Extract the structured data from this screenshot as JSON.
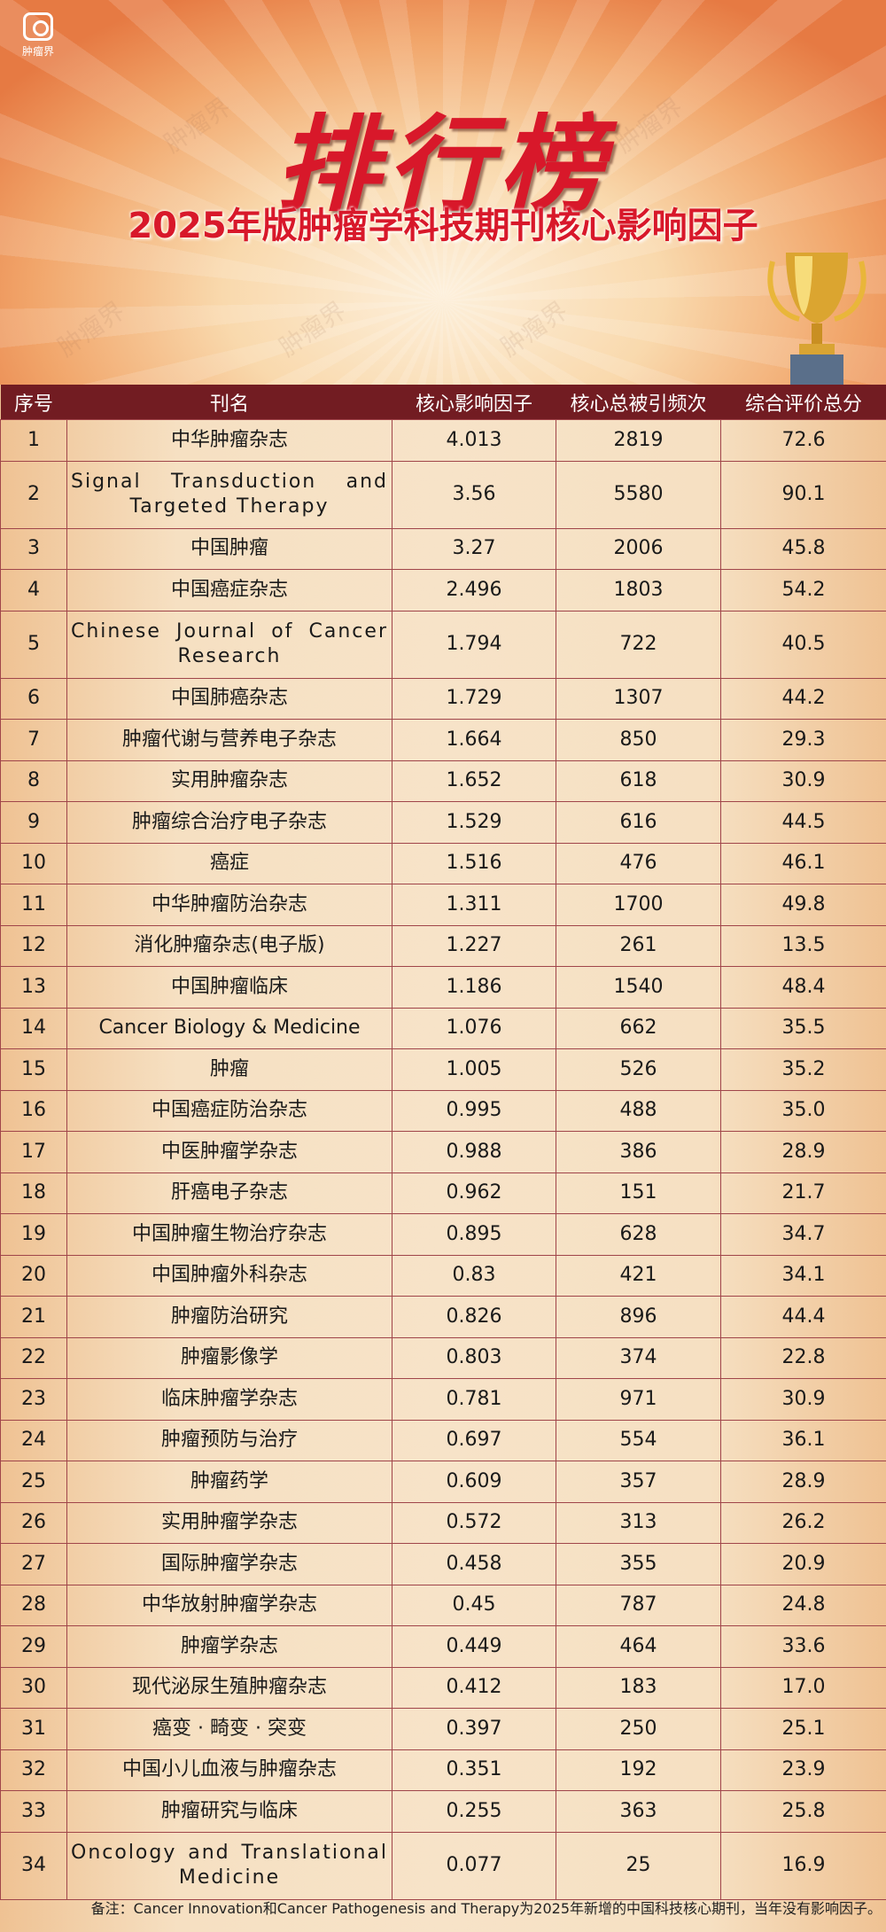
{
  "brand": {
    "logo_text": "肿瘤界",
    "watermark": "肿瘤界"
  },
  "header": {
    "title": "排行榜",
    "subtitle": "2025年版肿瘤学科技期刊核心影响因子"
  },
  "table": {
    "columns": [
      "序号",
      "刊名",
      "核心影响因子",
      "核心总被引频次",
      "综合评价总分"
    ],
    "rows": [
      [
        "1",
        "中华肿瘤杂志",
        "4.013",
        "2819",
        "72.6"
      ],
      [
        "2",
        "Signal Transduction and Targeted Therapy",
        "3.56",
        "5580",
        "90.1"
      ],
      [
        "3",
        "中国肿瘤",
        "3.27",
        "2006",
        "45.8"
      ],
      [
        "4",
        "中国癌症杂志",
        "2.496",
        "1803",
        "54.2"
      ],
      [
        "5",
        "Chinese Journal of Cancer Research",
        "1.794",
        "722",
        "40.5"
      ],
      [
        "6",
        "中国肺癌杂志",
        "1.729",
        "1307",
        "44.2"
      ],
      [
        "7",
        "肿瘤代谢与营养电子杂志",
        "1.664",
        "850",
        "29.3"
      ],
      [
        "8",
        "实用肿瘤杂志",
        "1.652",
        "618",
        "30.9"
      ],
      [
        "9",
        "肿瘤综合治疗电子杂志",
        "1.529",
        "616",
        "44.5"
      ],
      [
        "10",
        "癌症",
        "1.516",
        "476",
        "46.1"
      ],
      [
        "11",
        "中华肿瘤防治杂志",
        "1.311",
        "1700",
        "49.8"
      ],
      [
        "12",
        "消化肿瘤杂志(电子版)",
        "1.227",
        "261",
        "13.5"
      ],
      [
        "13",
        "中国肿瘤临床",
        "1.186",
        "1540",
        "48.4"
      ],
      [
        "14",
        "Cancer Biology & Medicine",
        "1.076",
        "662",
        "35.5"
      ],
      [
        "15",
        "肿瘤",
        "1.005",
        "526",
        "35.2"
      ],
      [
        "16",
        "中国癌症防治杂志",
        "0.995",
        "488",
        "35.0"
      ],
      [
        "17",
        "中医肿瘤学杂志",
        "0.988",
        "386",
        "28.9"
      ],
      [
        "18",
        "肝癌电子杂志",
        "0.962",
        "151",
        "21.7"
      ],
      [
        "19",
        "中国肿瘤生物治疗杂志",
        "0.895",
        "628",
        "34.7"
      ],
      [
        "20",
        "中国肿瘤外科杂志",
        "0.83",
        "421",
        "34.1"
      ],
      [
        "21",
        "肿瘤防治研究",
        "0.826",
        "896",
        "44.4"
      ],
      [
        "22",
        "肿瘤影像学",
        "0.803",
        "374",
        "22.8"
      ],
      [
        "23",
        "临床肿瘤学杂志",
        "0.781",
        "971",
        "30.9"
      ],
      [
        "24",
        "肿瘤预防与治疗",
        "0.697",
        "554",
        "36.1"
      ],
      [
        "25",
        "肿瘤药学",
        "0.609",
        "357",
        "28.9"
      ],
      [
        "26",
        "实用肿瘤学杂志",
        "0.572",
        "313",
        "26.2"
      ],
      [
        "27",
        "国际肿瘤学杂志",
        "0.458",
        "355",
        "20.9"
      ],
      [
        "28",
        "中华放射肿瘤学杂志",
        "0.45",
        "787",
        "24.8"
      ],
      [
        "29",
        "肿瘤学杂志",
        "0.449",
        "464",
        "33.6"
      ],
      [
        "30",
        "现代泌尿生殖肿瘤杂志",
        "0.412",
        "183",
        "17.0"
      ],
      [
        "31",
        "癌变 · 畸变 · 突变",
        "0.397",
        "250",
        "25.1"
      ],
      [
        "32",
        "中国小儿血液与肿瘤杂志",
        "0.351",
        "192",
        "23.9"
      ],
      [
        "33",
        "肿瘤研究与临床",
        "0.255",
        "363",
        "25.8"
      ],
      [
        "34",
        "Oncology and Translational Medicine",
        "0.077",
        "25",
        "16.9"
      ]
    ]
  },
  "footnote": "备注：Cancer Innovation和Cancer Pathogenesis and Therapy为2025年新增的中国科技核心期刊，当年没有影响因子。",
  "colors": {
    "header_bg": "#721c22",
    "title_red": "#d8182a",
    "cell_bg": "#f6e0c2",
    "grid": "#a0454a"
  }
}
